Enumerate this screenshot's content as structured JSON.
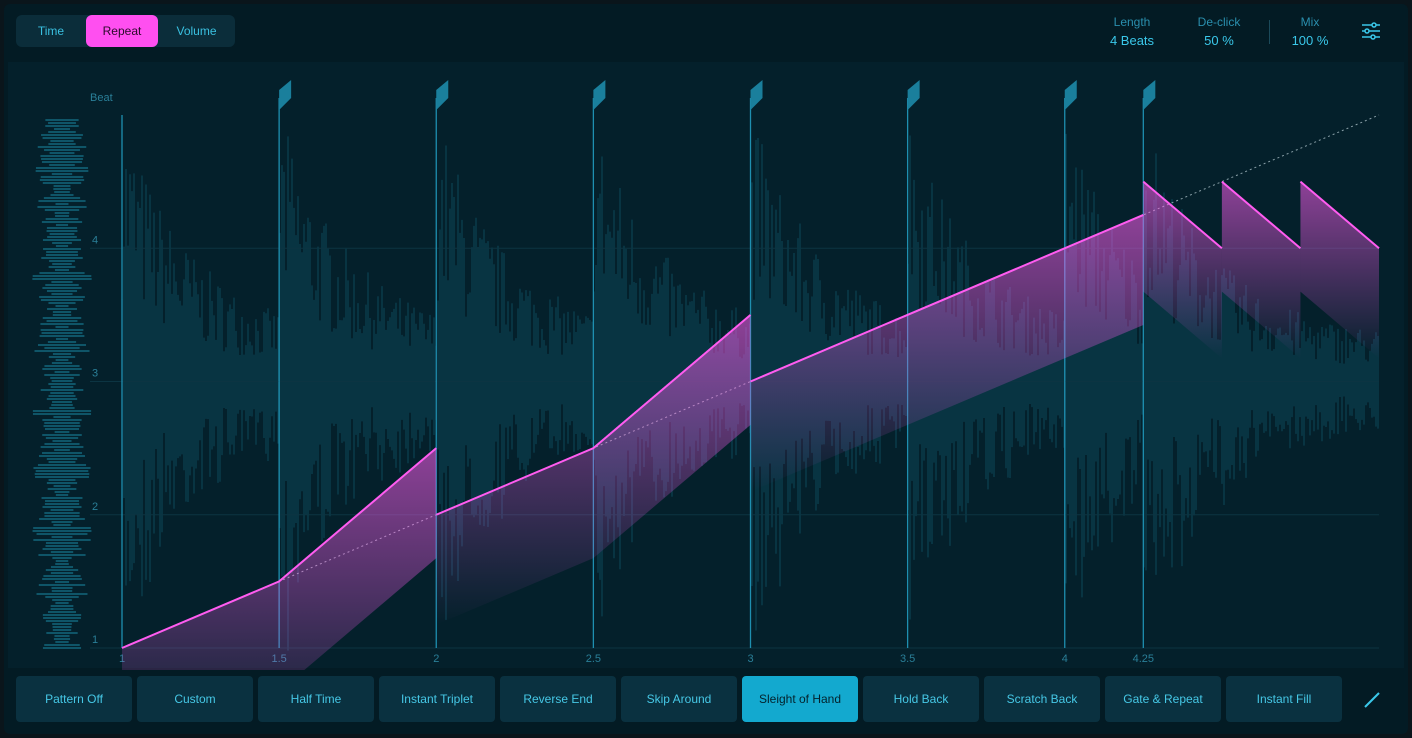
{
  "tabs": [
    {
      "label": "Time",
      "selected": false
    },
    {
      "label": "Repeat",
      "selected": true
    },
    {
      "label": "Volume",
      "selected": false
    }
  ],
  "params": [
    {
      "label": "Length",
      "value": "4 Beats"
    },
    {
      "label": "De-click",
      "value": "50 %"
    },
    {
      "label": "Mix",
      "value": "100 %"
    }
  ],
  "chart_data": {
    "type": "line",
    "y_axis_label": "Beat",
    "x": [
      1,
      1.5,
      2,
      null,
      2,
      2.5,
      3,
      null,
      3,
      4.25,
      null,
      4.25,
      4.5,
      null,
      4.5,
      4.75,
      null,
      4.75,
      5
    ],
    "series": [
      {
        "color": "#ff5cf0",
        "values": [
          1,
          1.5,
          2.5,
          null,
          2,
          2.5,
          3.5,
          null,
          3,
          4.25,
          null,
          4.5,
          4,
          null,
          4.5,
          4,
          null,
          4.5,
          4
        ]
      }
    ],
    "xlim": [
      1,
      5
    ],
    "ylim": [
      1,
      5
    ],
    "xticks": [
      1,
      1.5,
      2,
      2.5,
      3,
      3.5,
      4,
      4.25
    ],
    "yticks": [
      1,
      2,
      3,
      4
    ]
  },
  "patterns": [
    {
      "label": "Pattern Off",
      "selected": false
    },
    {
      "label": "Custom",
      "selected": false
    },
    {
      "label": "Half Time",
      "selected": false
    },
    {
      "label": "Instant Triplet",
      "selected": false
    },
    {
      "label": "Reverse End",
      "selected": false
    },
    {
      "label": "Skip Around",
      "selected": false
    },
    {
      "label": "Sleight of Hand",
      "selected": true
    },
    {
      "label": "Hold Back",
      "selected": false
    },
    {
      "label": "Scratch Back",
      "selected": false
    },
    {
      "label": "Gate & Repeat",
      "selected": false
    },
    {
      "label": "Instant Fill",
      "selected": false
    }
  ]
}
